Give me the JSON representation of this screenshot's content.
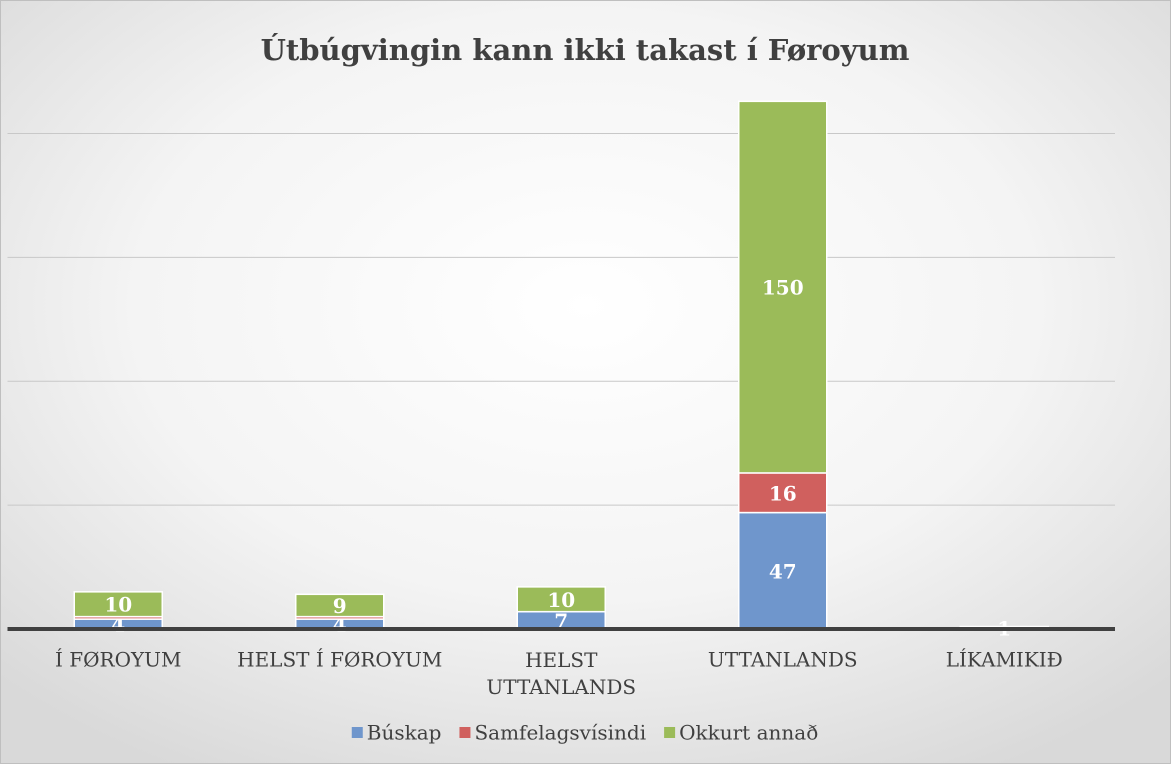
{
  "chart_data": {
    "type": "bar",
    "stacked": true,
    "title": "Útbúgvingin kann ikki takast í Føroyum",
    "categories": [
      "Í FØROYUM",
      "HELST Í FØROYUM",
      "HELST UTTANLANDS",
      "UTTANLANDS",
      "LÍKAMIKIÐ"
    ],
    "series": [
      {
        "name": "Búskap",
        "color": "#6f96cc",
        "values": [
          4,
          4,
          7,
          47,
          1
        ],
        "value_labels": [
          "4",
          "4",
          "7",
          "47",
          "1"
        ]
      },
      {
        "name": "Samfelagsvísindi",
        "color": "#d0605e",
        "values": [
          1,
          1,
          null,
          16,
          null
        ],
        "value_labels": [
          null,
          null,
          null,
          "16",
          null
        ]
      },
      {
        "name": "Okkurt annað",
        "color": "#9bbb59",
        "values": [
          10,
          9,
          10,
          150,
          null
        ],
        "value_labels": [
          "10",
          "9",
          "10",
          "150",
          null
        ]
      }
    ],
    "ylim": [
      0,
      220
    ],
    "yticks": [
      0,
      50,
      100,
      150,
      200
    ],
    "grid": true,
    "legend": "bottom"
  }
}
